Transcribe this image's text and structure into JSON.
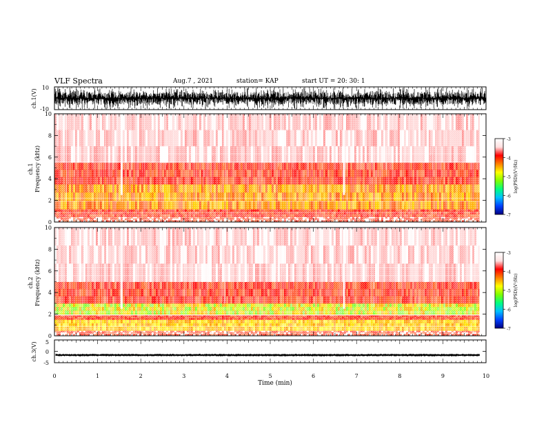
{
  "header": {
    "title": "VLF Spectra",
    "date": "Aug.7 , 2021",
    "station": "station= KAP",
    "start": "start UT =   20: 30: 1"
  },
  "chart_data": [
    {
      "type": "line",
      "panel": "ch1-waveform",
      "ylabel": "ch.1(V)",
      "yticks": [
        "10",
        "-10"
      ],
      "ylim": [
        -10,
        10
      ],
      "xlim": [
        0,
        10
      ],
      "series": [
        {
          "name": "",
          "description_values": "dense broadband noise, amplitude roughly -10 to 10 V, saturating near +/-10",
          "color": "#000000"
        }
      ]
    },
    {
      "type": "heatmap",
      "panel": "ch1-spectrogram",
      "ylabel": "ch.1\nFrequency (kHz)",
      "yticks": [
        "0",
        "2",
        "4",
        "6",
        "8",
        "10"
      ],
      "ylim": [
        0,
        10
      ],
      "xlim": [
        0,
        9.85
      ],
      "intensity_bands_kHz": [
        {
          "from": 0.0,
          "to": 0.5,
          "level": "red-striped"
        },
        {
          "from": 0.5,
          "to": 1.2,
          "level": "red"
        },
        {
          "from": 1.2,
          "to": 3.5,
          "level": "yellow-orange"
        },
        {
          "from": 3.5,
          "to": 5.5,
          "level": "red"
        },
        {
          "from": 5.5,
          "to": 10.0,
          "level": "light-red"
        }
      ],
      "bright_vertical_lines_min": [
        1.55,
        6.7
      ]
    },
    {
      "type": "heatmap",
      "panel": "ch2-spectrogram",
      "ylabel": "ch.2\nFrequency (kHz)",
      "yticks": [
        "0",
        "2",
        "4",
        "6",
        "8",
        "10"
      ],
      "ylim": [
        0,
        10
      ],
      "xlim": [
        0,
        9.85
      ],
      "intensity_bands_kHz": [
        {
          "from": 0.0,
          "to": 0.5,
          "level": "red-striped"
        },
        {
          "from": 0.5,
          "to": 1.5,
          "level": "yellow"
        },
        {
          "from": 1.5,
          "to": 1.9,
          "level": "red"
        },
        {
          "from": 2.0,
          "to": 3.0,
          "level": "yellow-green"
        },
        {
          "from": 3.0,
          "to": 5.0,
          "level": "red"
        },
        {
          "from": 5.0,
          "to": 10.0,
          "level": "light-red"
        }
      ],
      "bright_vertical_lines_min": [
        1.55,
        6.7
      ]
    },
    {
      "type": "line",
      "panel": "ch3-waveform",
      "ylabel": "ch.3(V)",
      "yticks": [
        "5",
        "0",
        "-5"
      ],
      "ylim": [
        -5,
        5
      ],
      "xlim": [
        0,
        10
      ],
      "series": [
        {
          "name": "",
          "description_values": "narrow band around -2 to -1 V",
          "color": "#000000"
        }
      ]
    }
  ],
  "xaxis": {
    "label": "Time (min)",
    "ticks": [
      "0",
      "1",
      "2",
      "3",
      "4",
      "5",
      "6",
      "7",
      "8",
      "9",
      "10"
    ]
  },
  "colorbar": {
    "label": "log(PSD)(V²/Hz)",
    "ticks": [
      "-3",
      "-4",
      "-5",
      "-6",
      "-7"
    ],
    "range": [
      -7,
      -3
    ],
    "colors": [
      "#000080",
      "#0040ff",
      "#00c0ff",
      "#00ff80",
      "#80ff00",
      "#ffff00",
      "#ff8000",
      "#ff0000",
      "#ffe0e0",
      "#ffffff"
    ]
  }
}
